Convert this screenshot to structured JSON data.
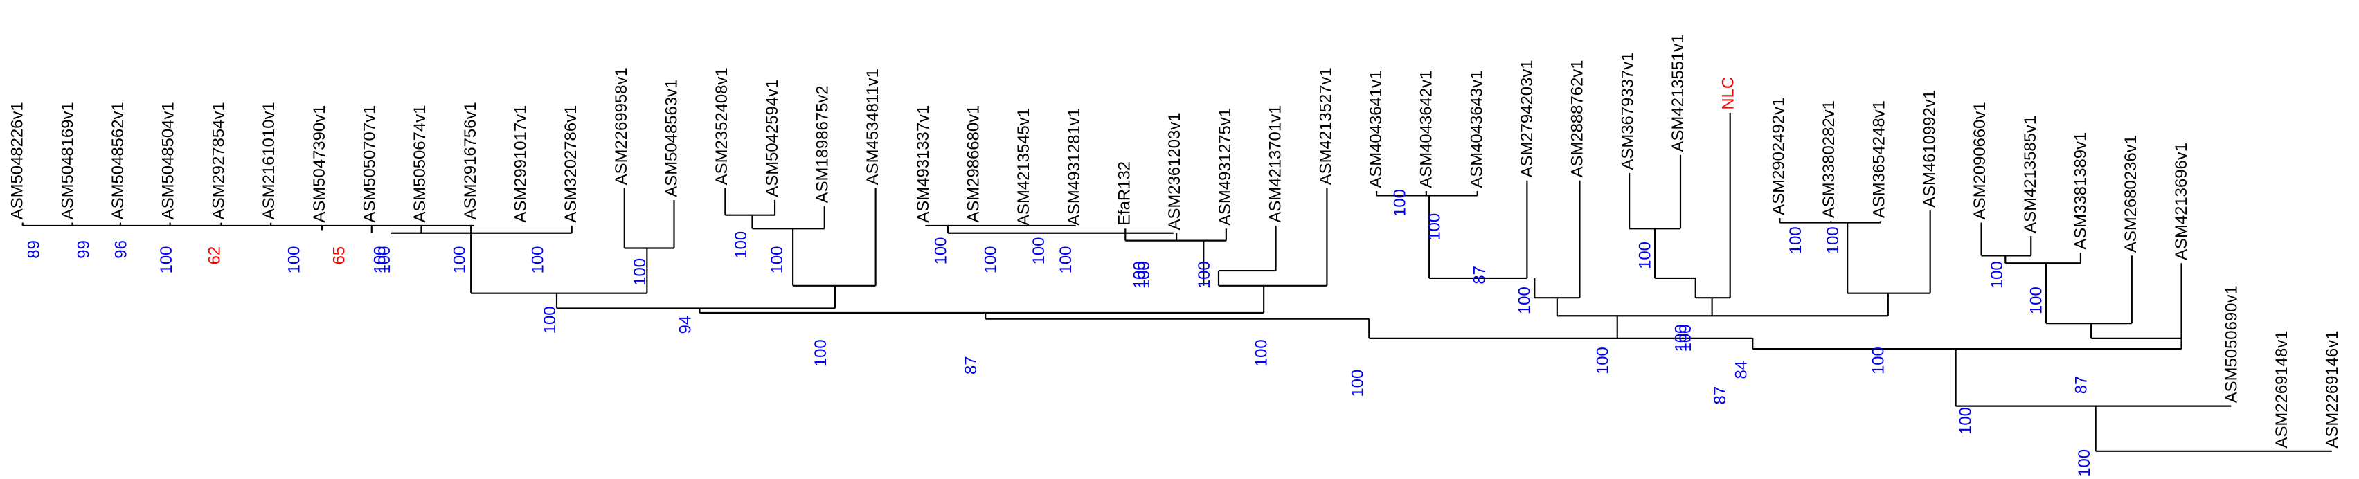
{
  "tree": {
    "leaf_color": "#000000",
    "support_color": "#0000ee",
    "leaves": [
      {
        "label": "ASM5048226v1"
      },
      {
        "label": "ASM5048169v1"
      },
      {
        "label": "ASM5048562v1"
      },
      {
        "label": "ASM5048504v1"
      },
      {
        "label": "ASM2927854v1"
      },
      {
        "label": "ASM2161010v1"
      },
      {
        "label": "ASM5047390v1"
      },
      {
        "label": "ASM5050707v1"
      },
      {
        "label": "ASM5050674v1"
      },
      {
        "label": "ASM2916756v1"
      },
      {
        "label": "ASM2991017v1"
      },
      {
        "label": "ASM3202786v1"
      },
      {
        "label": "ASM2269958v1"
      },
      {
        "label": "ASM5048563v1"
      },
      {
        "label": "ASM2352408v1"
      },
      {
        "label": "ASM5042594v1"
      },
      {
        "label": "ASM1898675v2"
      },
      {
        "label": "ASM4534811v1"
      },
      {
        "label": "ASM4931337v1"
      },
      {
        "label": "ASM2986680v1"
      },
      {
        "label": "ASM4213545v1"
      },
      {
        "label": "ASM4931281v1"
      },
      {
        "label": "EfaR132"
      },
      {
        "label": "ASM2361203v1"
      },
      {
        "label": "ASM4931275v1"
      },
      {
        "label": "ASM4213701v1"
      },
      {
        "label": "ASM4213527v1"
      },
      {
        "label": "ASM4043641v1"
      },
      {
        "label": "ASM4043642v1"
      },
      {
        "label": "ASM4043643v1"
      },
      {
        "label": "ASM2794203v1"
      },
      {
        "label": "ASM2888762v1"
      },
      {
        "label": "ASM3679337v1"
      },
      {
        "label": "ASM4213551v1"
      },
      {
        "label": "NLC",
        "color": "#ff0000"
      },
      {
        "label": "ASM2902492v1"
      },
      {
        "label": "ASM3380282v1"
      },
      {
        "label": "ASM3654248v1"
      },
      {
        "label": "ASM4610992v1"
      },
      {
        "label": "ASM2090660v1"
      },
      {
        "label": "ASM4213585v1"
      },
      {
        "label": "ASM3381389v1"
      },
      {
        "label": "ASM2680236v1"
      },
      {
        "label": "ASM4213696v1"
      },
      {
        "label": "ASM5050690v1"
      },
      {
        "label": "ASM2269148v1"
      },
      {
        "label": "ASM2269146v1"
      }
    ],
    "support": [
      {
        "value": 89
      },
      {
        "value": 99
      },
      {
        "value": 96
      },
      {
        "value": 100
      },
      {
        "value": 62,
        "color": "#ff0000"
      },
      {
        "value": 100
      },
      {
        "value": 65,
        "color": "#ff0000"
      },
      {
        "value": 100
      },
      {
        "value": 100
      },
      {
        "value": 100
      },
      {
        "value": 100
      },
      {
        "value": 100
      },
      {
        "value": 100
      },
      {
        "value": 94
      },
      {
        "value": 100
      },
      {
        "value": 100
      },
      {
        "value": 100
      },
      {
        "value": 100
      },
      {
        "value": 100
      },
      {
        "value": 100
      },
      {
        "value": 100
      },
      {
        "value": 87
      },
      {
        "value": 100
      },
      {
        "value": 100
      },
      {
        "value": 100
      },
      {
        "value": 100
      },
      {
        "value": 100
      },
      {
        "value": 100
      },
      {
        "value": 100
      },
      {
        "value": 87
      },
      {
        "value": 100
      },
      {
        "value": 100
      },
      {
        "value": 100
      },
      {
        "value": 100
      },
      {
        "value": 100
      },
      {
        "value": 84
      },
      {
        "value": 87
      },
      {
        "value": 100
      },
      {
        "value": 100
      },
      {
        "value": 100
      },
      {
        "value": 100
      },
      {
        "value": 100
      },
      {
        "value": 87
      },
      {
        "value": 100
      },
      {
        "value": 100
      }
    ]
  }
}
